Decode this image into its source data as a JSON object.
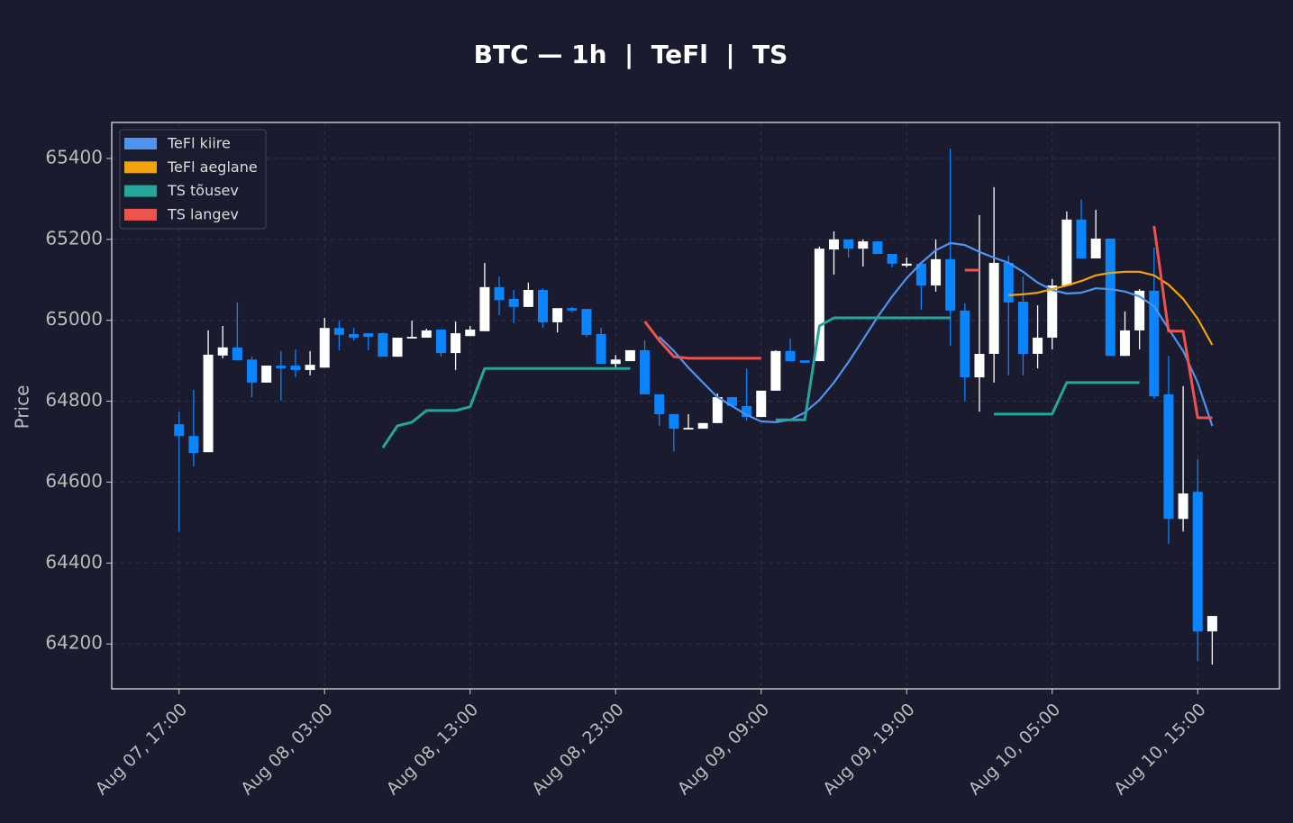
{
  "chart_data": {
    "type": "candlestick",
    "title": "BTC — 1h  |  TeFl  |  TS",
    "y_label": "Price",
    "categories": [
      "Aug 07, 17:00",
      null,
      null,
      null,
      null,
      null,
      null,
      null,
      null,
      null,
      "Aug 08, 03:00",
      null,
      null,
      null,
      null,
      null,
      null,
      null,
      null,
      null,
      "Aug 08, 13:00",
      null,
      null,
      null,
      null,
      null,
      null,
      null,
      null,
      null,
      "Aug 08, 23:00",
      null,
      null,
      null,
      null,
      null,
      null,
      null,
      null,
      null,
      "Aug 09, 09:00",
      null,
      null,
      null,
      null,
      null,
      null,
      null,
      null,
      null,
      "Aug 09, 19:00",
      null,
      null,
      null,
      null,
      null,
      null,
      null,
      null,
      null,
      "Aug 10, 05:00",
      null,
      null,
      null,
      null,
      null,
      null,
      null,
      null,
      null,
      "Aug 10, 15:00",
      null
    ],
    "open": [
      64743,
      64714,
      64674,
      64913,
      64933,
      64903,
      64846,
      64888,
      64888,
      64877,
      64883,
      64981,
      64966,
      64968,
      64968,
      64910,
      64955,
      64957,
      64977,
      64919,
      64961,
      64973,
      65082,
      65053,
      65033,
      65075,
      64995,
      65030,
      65028,
      64966,
      64892,
      64899,
      64926,
      64817,
      64768,
      64730,
      64732,
      64746,
      64810,
      64788,
      64761,
      64826,
      64924,
      64901,
      64899,
      65175,
      65200,
      65177,
      65195,
      65164,
      65135,
      65140,
      65086,
      65151,
      65024,
      64859,
      64917,
      65142,
      65046,
      64917,
      64957,
      65086,
      65249,
      65153,
      65202,
      64912,
      64975,
      65073,
      64817,
      64509,
      64576,
      64231
    ],
    "high": [
      64774,
      64828,
      64975,
      64986,
      65044,
      64910,
      64888,
      64924,
      64928,
      64924,
      65006,
      64999,
      64981,
      64968,
      64970,
      64957,
      64999,
      64979,
      64977,
      64997,
      64986,
      65142,
      65108,
      65075,
      65093,
      65079,
      65030,
      65033,
      65028,
      64981,
      64914,
      64926,
      64950,
      64817,
      64768,
      64768,
      64746,
      64819,
      64810,
      64881,
      64826,
      64926,
      64955,
      64901,
      65182,
      65220,
      65200,
      65200,
      65195,
      65164,
      65155,
      65140,
      65200,
      65424,
      65042,
      65260,
      65329,
      65160,
      65108,
      65037,
      65102,
      65269,
      65298,
      65273,
      65202,
      65022,
      65077,
      65180,
      64912,
      64837,
      64656,
      64269
    ],
    "low": [
      64478,
      64639,
      64674,
      64906,
      64901,
      64810,
      64846,
      64801,
      64859,
      64864,
      64883,
      64926,
      64950,
      64926,
      64910,
      64910,
      64955,
      64957,
      64910,
      64877,
      64961,
      64973,
      65013,
      64993,
      65033,
      64981,
      64970,
      65020,
      64959,
      64892,
      64883,
      64899,
      64817,
      64739,
      64676,
      64730,
      64732,
      64746,
      64788,
      64752,
      64761,
      64826,
      64899,
      64895,
      64899,
      65113,
      65155,
      65133,
      65164,
      65131,
      65131,
      65026,
      65071,
      64937,
      64801,
      64774,
      64846,
      64864,
      64864,
      64881,
      64928,
      65086,
      65153,
      65153,
      64912,
      64912,
      64928,
      64806,
      64447,
      64478,
      64158,
      64149
    ],
    "close": [
      64714,
      64672,
      64915,
      64933,
      64901,
      64846,
      64888,
      64881,
      64877,
      64890,
      64981,
      64964,
      64957,
      64959,
      64910,
      64957,
      64959,
      64975,
      64919,
      64968,
      64977,
      65082,
      65050,
      65033,
      65075,
      64995,
      65030,
      65024,
      64964,
      64892,
      64903,
      64926,
      64817,
      64768,
      64732,
      64734,
      64746,
      64810,
      64788,
      64761,
      64826,
      64924,
      64899,
      64895,
      65177,
      65200,
      65177,
      65195,
      65164,
      65140,
      65140,
      65086,
      65151,
      65024,
      64859,
      64917,
      65142,
      65044,
      64917,
      64957,
      65086,
      65249,
      65153,
      65202,
      64912,
      64975,
      65073,
      64812,
      64509,
      64572,
      64231,
      64269
    ],
    "up_color": "#ffffff",
    "down_color": "#0a84ff",
    "series": [
      {
        "name": "TeFl kiire",
        "color": "#4f94ef",
        "values": [
          null,
          null,
          null,
          null,
          null,
          null,
          null,
          null,
          null,
          null,
          null,
          null,
          null,
          null,
          null,
          null,
          null,
          null,
          null,
          null,
          null,
          null,
          null,
          null,
          null,
          null,
          null,
          null,
          null,
          null,
          null,
          null,
          null,
          64959,
          64924,
          64883,
          64846,
          64810,
          64788,
          64766,
          64750,
          64748,
          64754,
          64772,
          64803,
          64846,
          64897,
          64952,
          65008,
          65059,
          65104,
          65142,
          65173,
          65191,
          65186,
          65169,
          65155,
          65142,
          65120,
          65093,
          65075,
          65066,
          65068,
          65079,
          65077,
          65071,
          65059,
          65035,
          64979,
          64924,
          64846,
          64739
        ]
      },
      {
        "name": "TeFl aeglane",
        "color": "#f0a30a",
        "values": [
          null,
          null,
          null,
          null,
          null,
          null,
          null,
          null,
          null,
          null,
          null,
          null,
          null,
          null,
          null,
          null,
          null,
          null,
          null,
          null,
          null,
          null,
          null,
          null,
          null,
          null,
          null,
          null,
          null,
          null,
          null,
          null,
          null,
          null,
          null,
          null,
          null,
          null,
          null,
          null,
          null,
          null,
          null,
          null,
          null,
          null,
          null,
          null,
          null,
          null,
          null,
          null,
          null,
          null,
          null,
          null,
          null,
          65062,
          65064,
          65068,
          65077,
          65086,
          65097,
          65111,
          65117,
          65120,
          65120,
          65111,
          65088,
          65053,
          65004,
          64939
        ]
      },
      {
        "name": "TS tõusev",
        "color": "#26a69a",
        "values": [
          null,
          null,
          null,
          null,
          null,
          null,
          null,
          null,
          null,
          null,
          null,
          null,
          null,
          null,
          64685,
          64739,
          64748,
          64777,
          64777,
          64777,
          64786,
          64881,
          64881,
          64881,
          64881,
          64881,
          64881,
          64881,
          64881,
          64881,
          64881,
          64881,
          null,
          null,
          null,
          null,
          null,
          null,
          null,
          null,
          null,
          64754,
          64754,
          64754,
          64986,
          65006,
          65006,
          65006,
          65006,
          65006,
          65006,
          65006,
          65006,
          65006,
          null,
          null,
          64768,
          64768,
          64768,
          64768,
          64768,
          64846,
          64846,
          64846,
          64846,
          64846,
          64846,
          null,
          null,
          null,
          null,
          null
        ]
      },
      {
        "name": "TS langev",
        "color": "#ef5350",
        "values": [
          null,
          null,
          null,
          null,
          null,
          null,
          null,
          null,
          null,
          null,
          null,
          null,
          null,
          null,
          null,
          null,
          null,
          null,
          null,
          null,
          null,
          null,
          null,
          null,
          null,
          null,
          null,
          null,
          null,
          null,
          null,
          null,
          64997,
          64950,
          64910,
          64906,
          64906,
          64906,
          64906,
          64906,
          64906,
          null,
          null,
          null,
          null,
          null,
          null,
          null,
          null,
          null,
          null,
          null,
          null,
          null,
          65124,
          65124,
          null,
          null,
          null,
          null,
          null,
          null,
          null,
          null,
          null,
          null,
          null,
          65233,
          64973,
          64973,
          64759,
          64759
        ]
      }
    ],
    "ylim": [
      64089,
      65489
    ],
    "yticks": [
      64200,
      64400,
      64600,
      64800,
      65000,
      65200,
      65400
    ],
    "grid": true,
    "legend": "upper left"
  }
}
